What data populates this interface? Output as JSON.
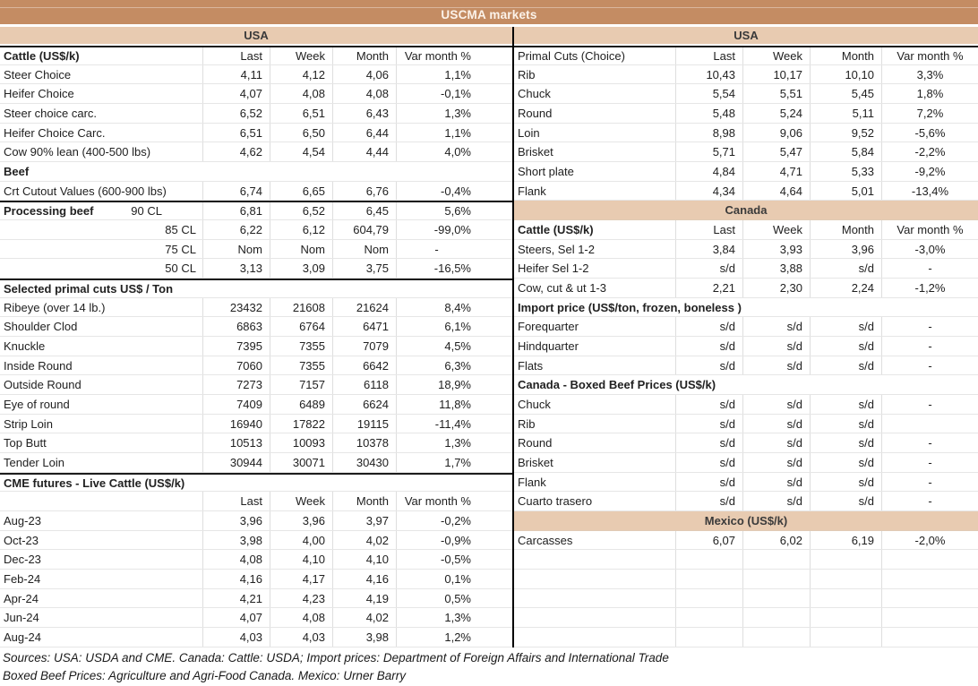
{
  "title": "USCMA markets",
  "colors": {
    "banner": "#C48C63",
    "band": "#E8CBB1",
    "divider": "#000000"
  },
  "footer": {
    "line1": "Sources: USA: USDA and CME. Canada: Cattle: USDA; Import prices: Department of Foreign Affairs and International Trade",
    "line2": "Boxed Beef Prices: Agriculture and Agri-Food Canada. Mexico: Urner Barry"
  },
  "tables": {
    "left": {
      "region": "USA",
      "rows": [
        {
          "t": "hdr",
          "l": "Cattle (US$/k)",
          "b": true,
          "top": true,
          "c": [
            "Last",
            "Week",
            "Month",
            "Var month %"
          ]
        },
        {
          "t": "r",
          "l": "Steer Choice",
          "c": [
            "4,11",
            "4,12",
            "4,06",
            "1,1%"
          ]
        },
        {
          "t": "r",
          "l": "Heifer Choice",
          "c": [
            "4,07",
            "4,08",
            "4,08",
            "-0,1%"
          ]
        },
        {
          "t": "r",
          "l": "Steer choice carc.",
          "c": [
            "6,52",
            "6,51",
            "6,43",
            "1,3%"
          ]
        },
        {
          "t": "r",
          "l": "Heifer Choice Carc.",
          "c": [
            "6,51",
            "6,50",
            "6,44",
            "1,1%"
          ]
        },
        {
          "t": "r",
          "l": "Cow 90% lean (400-500 lbs)",
          "c": [
            "4,62",
            "4,54",
            "4,44",
            "4,0%"
          ]
        },
        {
          "t": "sec",
          "l": "Beef",
          "b": true,
          "c": [
            "",
            "",
            "",
            ""
          ]
        },
        {
          "t": "r",
          "l": "Crt Cutout Values (600-900 lbs)",
          "c": [
            "6,74",
            "6,65",
            "6,76",
            "-0,4%"
          ]
        },
        {
          "t": "r",
          "l": "Processing beef",
          "b": true,
          "l2": "90 CL",
          "top": true,
          "c": [
            "6,81",
            "6,52",
            "6,45",
            "5,6%"
          ]
        },
        {
          "t": "r",
          "l": "85 CL",
          "la": "r",
          "c": [
            "6,22",
            "6,12",
            "604,79",
            "-99,0%"
          ]
        },
        {
          "t": "r",
          "l": "75 CL",
          "la": "r",
          "c": [
            "Nom",
            "Nom",
            "Nom",
            "-"
          ]
        },
        {
          "t": "r",
          "l": "50 CL",
          "la": "r",
          "c": [
            "3,13",
            "3,09",
            "3,75",
            "-16,5%"
          ]
        },
        {
          "t": "sec",
          "l": "Selected primal cuts US$ / Ton",
          "b": true,
          "top": true,
          "c": [
            "",
            "",
            "",
            ""
          ]
        },
        {
          "t": "r",
          "l": "Ribeye (over 14 lb.)",
          "c": [
            "23432",
            "21608",
            "21624",
            "8,4%"
          ]
        },
        {
          "t": "r",
          "l": "Shoulder Clod",
          "c": [
            "6863",
            "6764",
            "6471",
            "6,1%"
          ]
        },
        {
          "t": "r",
          "l": "Knuckle",
          "c": [
            "7395",
            "7355",
            "7079",
            "4,5%"
          ]
        },
        {
          "t": "r",
          "l": "Inside Round",
          "c": [
            "7060",
            "7355",
            "6642",
            "6,3%"
          ]
        },
        {
          "t": "r",
          "l": "Outside Round",
          "c": [
            "7273",
            "7157",
            "6118",
            "18,9%"
          ]
        },
        {
          "t": "r",
          "l": "Eye of round",
          "c": [
            "7409",
            "6489",
            "6624",
            "11,8%"
          ]
        },
        {
          "t": "r",
          "l": "Strip Loin",
          "c": [
            "16940",
            "17822",
            "19115",
            "-11,4%"
          ]
        },
        {
          "t": "r",
          "l": "Top Butt",
          "c": [
            "10513",
            "10093",
            "10378",
            "1,3%"
          ]
        },
        {
          "t": "r",
          "l": "Tender Loin",
          "c": [
            "30944",
            "30071",
            "30430",
            "1,7%"
          ]
        },
        {
          "t": "sec",
          "l": "CME futures - Live Cattle (US$/k)",
          "b": true,
          "top": true,
          "c": [
            "",
            "",
            "",
            ""
          ]
        },
        {
          "t": "hdr",
          "l": "",
          "c": [
            "Last",
            "Week",
            "Month",
            "Var month %"
          ]
        },
        {
          "t": "r",
          "l": "Aug-23",
          "c": [
            "3,96",
            "3,96",
            "3,97",
            "-0,2%"
          ]
        },
        {
          "t": "r",
          "l": "Oct-23",
          "c": [
            "3,98",
            "4,00",
            "4,02",
            "-0,9%"
          ]
        },
        {
          "t": "r",
          "l": "Dec-23",
          "c": [
            "4,08",
            "4,10",
            "4,10",
            "-0,5%"
          ]
        },
        {
          "t": "r",
          "l": "Feb-24",
          "c": [
            "4,16",
            "4,17",
            "4,16",
            "0,1%"
          ]
        },
        {
          "t": "r",
          "l": "Apr-24",
          "c": [
            "4,21",
            "4,23",
            "4,19",
            "0,5%"
          ]
        },
        {
          "t": "r",
          "l": "Jun-24",
          "c": [
            "4,07",
            "4,08",
            "4,02",
            "1,3%"
          ]
        },
        {
          "t": "r",
          "l": "Aug-24",
          "c": [
            "4,03",
            "4,03",
            "3,98",
            "1,2%"
          ]
        }
      ]
    },
    "right": {
      "region": "USA",
      "rows": [
        {
          "t": "hdr",
          "l": "Primal Cuts (Choice)",
          "top": true,
          "c": [
            "Last",
            "Week",
            "Month",
            "Var month %"
          ]
        },
        {
          "t": "r",
          "l": "Rib",
          "c": [
            "10,43",
            "10,17",
            "10,10",
            "3,3%"
          ]
        },
        {
          "t": "r",
          "l": "Chuck",
          "c": [
            "5,54",
            "5,51",
            "5,45",
            "1,8%"
          ]
        },
        {
          "t": "r",
          "l": "Round",
          "c": [
            "5,48",
            "5,24",
            "5,11",
            "7,2%"
          ]
        },
        {
          "t": "r",
          "l": "Loin",
          "c": [
            "8,98",
            "9,06",
            "9,52",
            "-5,6%"
          ]
        },
        {
          "t": "r",
          "l": "Brisket",
          "c": [
            "5,71",
            "5,47",
            "5,84",
            "-2,2%"
          ]
        },
        {
          "t": "r",
          "l": "Short plate",
          "c": [
            "4,84",
            "4,71",
            "5,33",
            "-9,2%"
          ]
        },
        {
          "t": "r",
          "l": "Flank",
          "c": [
            "4,34",
            "4,64",
            "5,01",
            "-13,4%"
          ]
        },
        {
          "t": "band",
          "l": "Canada"
        },
        {
          "t": "hdr",
          "l": "Cattle (US$/k)",
          "b": true,
          "c": [
            "Last",
            "Week",
            "Month",
            "Var month %"
          ]
        },
        {
          "t": "r",
          "l": "Steers, Sel 1-2",
          "c": [
            "3,84",
            "3,93",
            "3,96",
            "-3,0%"
          ]
        },
        {
          "t": "r",
          "l": "Heifer Sel 1-2",
          "c": [
            "s/d",
            "3,88",
            "s/d",
            "-"
          ]
        },
        {
          "t": "r",
          "l": "Cow, cut & ut 1-3",
          "c": [
            "2,21",
            "2,30",
            "2,24",
            "-1,2%"
          ]
        },
        {
          "t": "sec",
          "l": "Import price (US$/ton, frozen, boneless )",
          "b": true,
          "c": [
            "",
            "",
            "",
            ""
          ]
        },
        {
          "t": "r",
          "l": "Forequarter",
          "c": [
            "s/d",
            "s/d",
            "s/d",
            "-"
          ]
        },
        {
          "t": "r",
          "l": "Hindquarter",
          "c": [
            "s/d",
            "s/d",
            "s/d",
            "-"
          ]
        },
        {
          "t": "r",
          "l": "Flats",
          "c": [
            "s/d",
            "s/d",
            "s/d",
            "-"
          ]
        },
        {
          "t": "sec",
          "l": "Canada - Boxed Beef Prices (US$/k)",
          "b": true,
          "c": [
            "",
            "",
            "",
            ""
          ]
        },
        {
          "t": "r",
          "l": "Chuck",
          "c": [
            "s/d",
            "s/d",
            "s/d",
            "-"
          ]
        },
        {
          "t": "r",
          "l": "Rib",
          "c": [
            "s/d",
            "s/d",
            "s/d",
            ""
          ]
        },
        {
          "t": "r",
          "l": "Round",
          "c": [
            "s/d",
            "s/d",
            "s/d",
            "-"
          ]
        },
        {
          "t": "r",
          "l": "Brisket",
          "c": [
            "s/d",
            "s/d",
            "s/d",
            "-"
          ]
        },
        {
          "t": "r",
          "l": "Flank",
          "c": [
            "s/d",
            "s/d",
            "s/d",
            "-"
          ]
        },
        {
          "t": "r",
          "l": "Cuarto trasero",
          "c": [
            "s/d",
            "s/d",
            "s/d",
            "-"
          ]
        },
        {
          "t": "band",
          "l": "Mexico (US$/k)"
        },
        {
          "t": "r",
          "l": "Carcasses",
          "c": [
            "6,07",
            "6,02",
            "6,19",
            "-2,0%"
          ]
        },
        {
          "t": "r",
          "l": "",
          "c": [
            "",
            "",
            "",
            ""
          ]
        },
        {
          "t": "r",
          "l": "",
          "c": [
            "",
            "",
            "",
            ""
          ]
        },
        {
          "t": "r",
          "l": "",
          "c": [
            "",
            "",
            "",
            ""
          ]
        },
        {
          "t": "r",
          "l": "",
          "c": [
            "",
            "",
            "",
            ""
          ]
        },
        {
          "t": "r",
          "l": "",
          "c": [
            "",
            "",
            "",
            ""
          ]
        }
      ]
    }
  }
}
